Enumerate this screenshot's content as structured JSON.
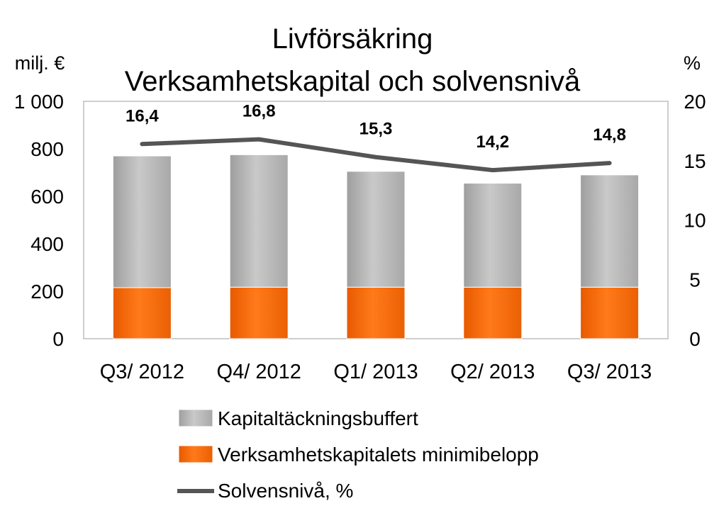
{
  "chart_data": {
    "type": "bar",
    "stacked": true,
    "title": "Livförsäkring",
    "subtitle": "Verksamhetskapital och solvensnivå",
    "ylabel_left": "milj. €",
    "ylabel_right": "%",
    "categories": [
      "Q3/ 2012",
      "Q4/ 2012",
      "Q1/ 2013",
      "Q2/ 2013",
      "Q3/ 2013"
    ],
    "ylim_left": [
      0,
      1000
    ],
    "yticks_left": [
      "0",
      "200",
      "400",
      "600",
      "800",
      "1 000"
    ],
    "ylim_right": [
      0,
      20
    ],
    "yticks_right": [
      "0",
      "5",
      "10",
      "15",
      "20"
    ],
    "series": [
      {
        "name": "Verksamhetskapitalets minimibelopp",
        "kind": "bar",
        "axis": "left",
        "color": "#F26A0D",
        "values": [
          215,
          217,
          217,
          217,
          217
        ]
      },
      {
        "name": "Kapitaltäckningsbuffert",
        "kind": "bar",
        "axis": "left",
        "color": "#B8B8B8",
        "values": [
          555,
          558,
          488,
          438,
          473
        ]
      },
      {
        "name": "Solvensnivå, %",
        "kind": "line",
        "axis": "right",
        "color": "#555555",
        "values": [
          16.4,
          16.8,
          15.3,
          14.2,
          14.8
        ],
        "labels": [
          "16,4",
          "16,8",
          "15,3",
          "14,2",
          "14,8"
        ]
      }
    ],
    "legend_order": [
      "Kapitaltäckningsbuffert",
      "Verksamhetskapitalets minimibelopp",
      "Solvensnivå, %"
    ],
    "legend_position": "bottom",
    "grid": false
  }
}
